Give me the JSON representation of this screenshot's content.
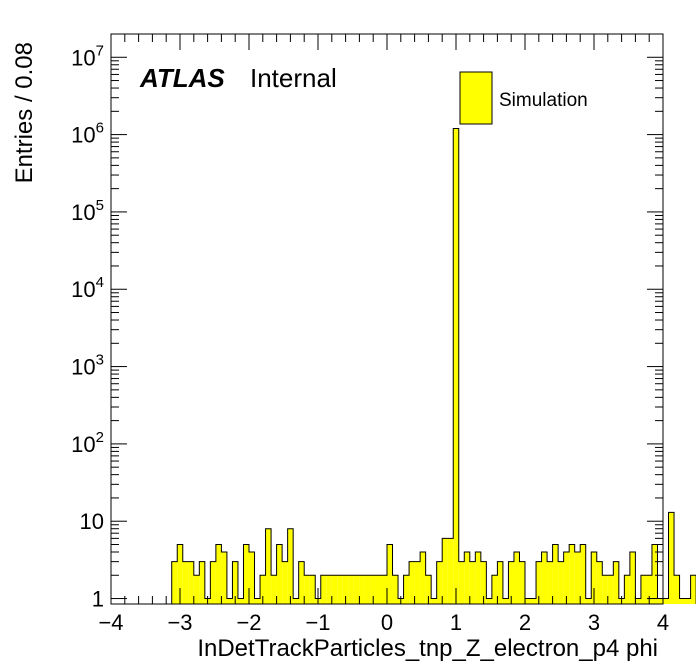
{
  "chart_data": {
    "type": "bar",
    "style": "histogram",
    "xlabel": "InDetTrackParticles_tnp_Z_electron_p4 phi",
    "ylabel": "Entries / 0.08",
    "xlim": [
      -4,
      4
    ],
    "ylim": [
      0.85,
      20000000
    ],
    "yscale": "log",
    "bin_width": 0.08,
    "x_ticks": [
      "−4",
      "−3",
      "−2",
      "−1",
      "0",
      "1",
      "2",
      "3",
      "4"
    ],
    "y_ticks": [
      {
        "value": 1,
        "base": "1",
        "exp": ""
      },
      {
        "value": 10,
        "base": "10",
        "exp": ""
      },
      {
        "value": 100,
        "base": "10",
        "exp": "2"
      },
      {
        "value": 1000,
        "base": "10",
        "exp": "3"
      },
      {
        "value": 10000,
        "base": "10",
        "exp": "4"
      },
      {
        "value": 100000,
        "base": "10",
        "exp": "5"
      },
      {
        "value": 1000000,
        "base": "10",
        "exp": "6"
      },
      {
        "value": 10000000,
        "base": "10",
        "exp": "7"
      }
    ],
    "atlas_label": "ATLAS",
    "status_label": "Internal",
    "fill_color": "#ffff00",
    "line_color": "#000000",
    "grid": false,
    "legend_position": "top-right",
    "series": [
      {
        "name": "Simulation",
        "x_start": -3.12,
        "values": [
          3,
          5,
          3,
          3,
          2,
          3,
          1,
          3,
          5,
          4,
          1,
          3,
          1,
          5,
          4,
          1,
          2,
          8,
          2,
          5,
          3,
          8,
          1,
          3,
          2,
          2,
          1,
          2,
          2,
          2,
          2,
          2,
          2,
          2,
          2,
          2,
          2,
          2,
          2,
          5,
          2,
          1,
          2,
          3,
          3,
          4,
          2,
          1,
          3,
          6,
          6,
          1200000,
          3,
          4,
          3,
          4,
          3,
          1,
          2,
          3,
          1,
          3,
          4,
          3,
          1,
          1,
          3,
          4,
          3,
          5,
          3,
          4,
          5,
          4,
          5,
          1,
          4,
          3,
          2,
          2,
          3,
          1,
          2,
          4,
          1,
          2,
          2,
          5,
          1,
          1,
          13,
          2,
          1,
          1,
          2
        ]
      }
    ]
  }
}
